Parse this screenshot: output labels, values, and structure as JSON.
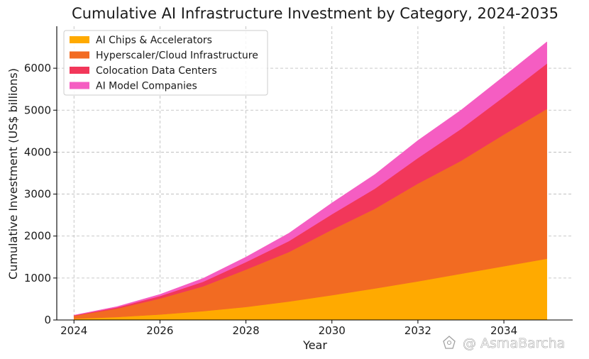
{
  "chart_data": {
    "type": "area",
    "stacked": true,
    "title": "Cumulative AI Infrastructure Investment by Category, 2024-2035",
    "xlabel": "Year",
    "ylabel": "Cumulative Investment (US$ billions)",
    "xlim": [
      2023.6,
      2035.6
    ],
    "ylim": [
      0,
      7000
    ],
    "xticks": [
      2024,
      2026,
      2028,
      2030,
      2032,
      2034
    ],
    "yticks": [
      0,
      1000,
      2000,
      3000,
      4000,
      5000,
      6000
    ],
    "grid": true,
    "legend_position": "top-left",
    "x": [
      2024,
      2025,
      2026,
      2027,
      2028,
      2029,
      2030,
      2031,
      2032,
      2033,
      2034,
      2035
    ],
    "series": [
      {
        "name": "AI Chips & Accelerators",
        "color": "#FFAA00",
        "values": [
          30,
          70,
          130,
          210,
          310,
          440,
          590,
          750,
          920,
          1100,
          1280,
          1460
        ]
      },
      {
        "name": "Hyperscaler/Cloud Infrastructure",
        "color": "#F26B22",
        "values": [
          70,
          200,
          380,
          590,
          890,
          1180,
          1560,
          1900,
          2330,
          2690,
          3140,
          3570
        ]
      },
      {
        "name": "Colocation Data Centers",
        "color": "#F2375A",
        "values": [
          10,
          30,
          60,
          110,
          180,
          260,
          370,
          480,
          610,
          760,
          900,
          1080
        ]
      },
      {
        "name": "AI Model Companies",
        "color": "#F55DC2",
        "values": [
          5,
          20,
          40,
          80,
          120,
          190,
          270,
          340,
          420,
          450,
          490,
          520
        ]
      }
    ]
  },
  "watermark": {
    "text": "@ AsmaBarcha"
  }
}
